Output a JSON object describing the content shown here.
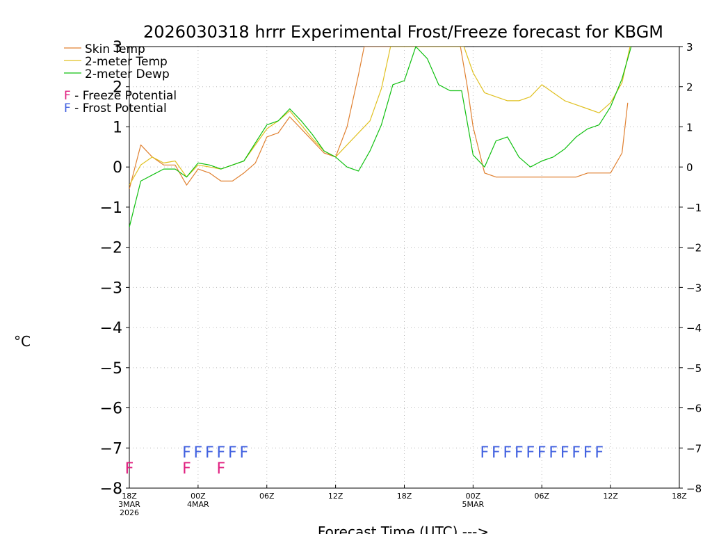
{
  "chart_data": {
    "type": "line",
    "title": "2026030318 hrrr Experimental Frost/Freeze forecast for KBGM",
    "ylabel": "°C",
    "xlabel": "Forecast Time (UTC) --->",
    "ylim": [
      -8,
      3
    ],
    "yticks": [
      -8,
      -7,
      -6,
      -5,
      -4,
      -3,
      -2,
      -1,
      0,
      1,
      2,
      3
    ],
    "ytick_labels": [
      "−8",
      "−7",
      "−6",
      "−5",
      "−4",
      "−3",
      "−2",
      "−1",
      "0",
      "1",
      "2",
      "3"
    ],
    "xlim": [
      0,
      48
    ],
    "xticks": [
      {
        "h": 0,
        "lines": [
          "18Z",
          "3MAR",
          "2026"
        ]
      },
      {
        "h": 6,
        "lines": [
          "00Z",
          "4MAR"
        ]
      },
      {
        "h": 12,
        "lines": [
          "06Z"
        ]
      },
      {
        "h": 18,
        "lines": [
          "12Z"
        ]
      },
      {
        "h": 24,
        "lines": [
          "18Z"
        ]
      },
      {
        "h": 30,
        "lines": [
          "00Z",
          "5MAR"
        ]
      },
      {
        "h": 36,
        "lines": [
          "06Z"
        ]
      },
      {
        "h": 42,
        "lines": [
          "12Z"
        ]
      },
      {
        "h": 48,
        "lines": [
          "18Z"
        ]
      }
    ],
    "grid": true,
    "legend": [
      {
        "label": "Skin Temp",
        "color": "#e08030"
      },
      {
        "label": "2-meter Temp",
        "color": "#e0c020"
      },
      {
        "label": "2-meter Dewp",
        "color": "#10c010"
      }
    ],
    "potential_legend": [
      {
        "glyph": "F",
        "text": " - Freeze Potential",
        "color": "#e02080"
      },
      {
        "glyph": "F",
        "text": " - Frost Potential",
        "color": "#4060e0"
      }
    ],
    "series": [
      {
        "name": "Skin Temp",
        "color": "#e08030",
        "x": [
          0,
          1,
          2,
          3,
          4,
          5,
          6,
          7,
          8,
          9,
          10,
          11,
          12,
          13,
          14,
          15,
          16,
          17,
          18,
          19,
          20,
          20.5,
          28.9,
          29.5,
          30,
          31,
          32,
          33,
          34,
          35,
          36,
          37,
          38,
          39,
          40,
          41,
          42,
          43,
          43.5
        ],
        "y": [
          -0.55,
          0.55,
          0.25,
          0.05,
          0.05,
          -0.45,
          -0.05,
          -0.15,
          -0.35,
          -0.35,
          -0.15,
          0.1,
          0.75,
          0.85,
          1.25,
          0.95,
          0.65,
          0.35,
          0.25,
          1.0,
          2.3,
          3.0,
          3.0,
          2.0,
          1.0,
          -0.15,
          -0.25,
          -0.25,
          -0.25,
          -0.25,
          -0.25,
          -0.25,
          -0.25,
          -0.25,
          -0.15,
          -0.15,
          -0.15,
          0.35,
          1.6
        ]
      },
      {
        "name": "2-meter Temp",
        "color": "#e0c020",
        "x": [
          0,
          1,
          2,
          3,
          4,
          5,
          6,
          7,
          8,
          9,
          10,
          11,
          12,
          13,
          14,
          15,
          16,
          17,
          18,
          19,
          20,
          21,
          22,
          22.8,
          29.2,
          30,
          31,
          32,
          33,
          34,
          35,
          36,
          37,
          38,
          39,
          40,
          41,
          42,
          43,
          43.7
        ],
        "y": [
          -0.45,
          0.05,
          0.25,
          0.1,
          0.15,
          -0.25,
          0.05,
          0.0,
          -0.05,
          0.05,
          0.15,
          0.55,
          0.95,
          1.15,
          1.4,
          1.05,
          0.7,
          0.4,
          0.25,
          0.55,
          0.85,
          1.15,
          1.95,
          3.0,
          3.0,
          2.35,
          1.85,
          1.75,
          1.65,
          1.65,
          1.75,
          2.05,
          1.85,
          1.65,
          1.55,
          1.45,
          1.35,
          1.6,
          2.1,
          3.0
        ]
      },
      {
        "name": "2-meter Dewp",
        "color": "#10c010",
        "x": [
          0,
          1,
          2,
          3,
          4,
          5,
          6,
          7,
          8,
          9,
          10,
          11,
          12,
          13,
          14,
          15,
          16,
          17,
          18,
          19,
          20,
          21,
          22,
          23,
          24,
          25,
          26,
          27,
          28,
          29,
          30,
          31,
          32,
          33,
          34,
          35,
          36,
          37,
          38,
          39,
          40,
          41,
          42,
          43,
          43.8
        ],
        "y": [
          -1.5,
          -0.35,
          -0.2,
          -0.05,
          -0.05,
          -0.25,
          0.1,
          0.05,
          -0.05,
          0.05,
          0.15,
          0.6,
          1.05,
          1.15,
          1.45,
          1.15,
          0.8,
          0.4,
          0.25,
          0.0,
          -0.1,
          0.4,
          1.05,
          2.05,
          2.15,
          3.0,
          2.7,
          2.05,
          1.9,
          1.9,
          0.3,
          0.0,
          0.65,
          0.75,
          0.25,
          0.0,
          0.15,
          0.25,
          0.45,
          0.75,
          0.95,
          1.05,
          1.5,
          2.2,
          3.0
        ]
      }
    ],
    "freeze_marks": {
      "glyph": "F",
      "color": "#e02080",
      "y": -7.5,
      "x": [
        0,
        5,
        8
      ]
    },
    "frost_marks": {
      "glyph": "F",
      "color": "#4060e0",
      "y": -7.1,
      "x": [
        5,
        6,
        7,
        8,
        9,
        10,
        31,
        32,
        33,
        34,
        35,
        36,
        37,
        38,
        39,
        40,
        41
      ]
    }
  }
}
